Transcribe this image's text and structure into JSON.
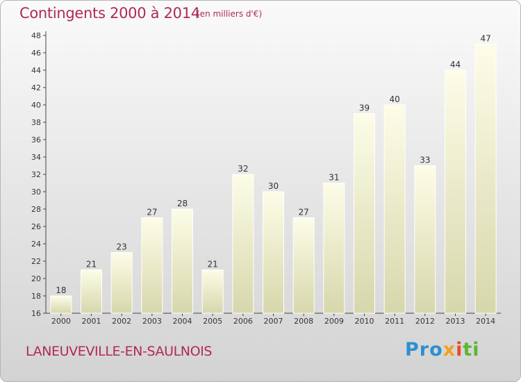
{
  "title": "Contingents 2000 à 2014",
  "subtitle": "(en milliers d'€)",
  "commune": "LANEUVEVILLE-EN-SAULNOIS",
  "brand": {
    "part1": "Pro",
    "part2": "x",
    "part3": "i",
    "part4": "ti"
  },
  "colors": {
    "accent": "#b0285a",
    "bar_top": "#fdfde8",
    "bar_bottom": "#d7d7ac"
  },
  "chart_data": {
    "type": "bar",
    "title": "Contingents 2000 à 2014",
    "subtitle": "(en milliers d'€)",
    "categories": [
      "2000",
      "2001",
      "2002",
      "2003",
      "2004",
      "2005",
      "2006",
      "2007",
      "2008",
      "2009",
      "2010",
      "2011",
      "2012",
      "2013",
      "2014"
    ],
    "values": [
      18,
      21,
      23,
      27,
      28,
      21,
      32,
      30,
      27,
      31,
      39,
      40,
      33,
      44,
      47
    ],
    "ylim": [
      16,
      48
    ],
    "yticks": [
      16,
      18,
      20,
      22,
      24,
      26,
      28,
      30,
      32,
      34,
      36,
      38,
      40,
      42,
      44,
      46,
      48
    ],
    "grid": false,
    "show_data_labels": true
  }
}
